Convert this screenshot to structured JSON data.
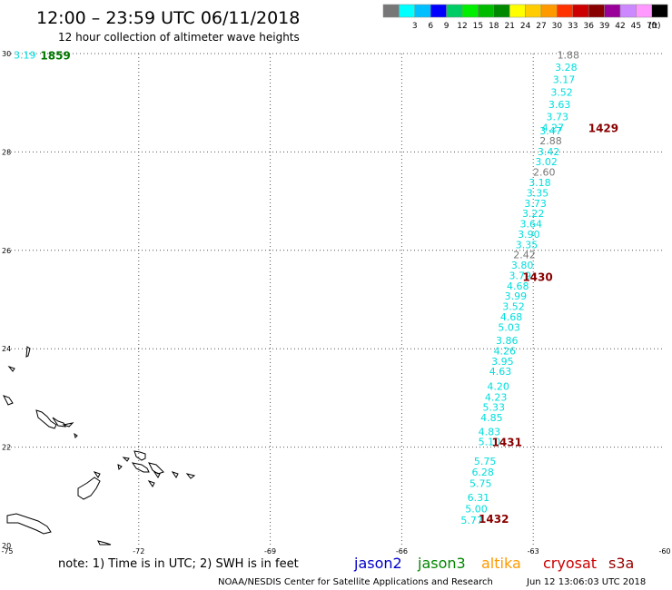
{
  "header": {
    "title": "12:00 – 23:59 UTC 06/11/2018",
    "subtitle": "12 hour collection of altimeter wave heights"
  },
  "legend": {
    "unit": "(ft)",
    "swatches": [
      {
        "label": "",
        "color": "#777777"
      },
      {
        "label": "3",
        "color": "#00ffff"
      },
      {
        "label": "6",
        "color": "#00bfff"
      },
      {
        "label": "9",
        "color": "#0000ff"
      },
      {
        "label": "12",
        "color": "#00cc66"
      },
      {
        "label": "15",
        "color": "#00ee00"
      },
      {
        "label": "18",
        "color": "#00bb00"
      },
      {
        "label": "21",
        "color": "#008800"
      },
      {
        "label": "24",
        "color": "#ffff00"
      },
      {
        "label": "27",
        "color": "#ffcc00"
      },
      {
        "label": "30",
        "color": "#ff9900"
      },
      {
        "label": "33",
        "color": "#ff3300"
      },
      {
        "label": "36",
        "color": "#cc0000"
      },
      {
        "label": "39",
        "color": "#880000"
      },
      {
        "label": "42",
        "color": "#990099"
      },
      {
        "label": "45",
        "color": "#cc88ff"
      },
      {
        "label": "70",
        "color": "#ff99ff"
      },
      {
        "label": "",
        "color": "#000000"
      }
    ]
  },
  "axes": {
    "lon_range": [
      -75,
      -60
    ],
    "lat_range": [
      20,
      30
    ],
    "lon_ticks": [
      {
        "value": -75,
        "label": "-75"
      },
      {
        "value": -72,
        "label": "-72"
      },
      {
        "value": -69,
        "label": "-69"
      },
      {
        "value": -66,
        "label": "-66"
      },
      {
        "value": -63,
        "label": "-63"
      },
      {
        "value": -60,
        "label": "-60"
      }
    ],
    "lat_ticks": [
      {
        "value": 20,
        "label": "20"
      },
      {
        "value": 22,
        "label": "22"
      },
      {
        "value": 24,
        "label": "24"
      },
      {
        "value": 26,
        "label": "26"
      },
      {
        "value": 28,
        "label": "28"
      },
      {
        "value": 30,
        "label": "30"
      }
    ],
    "grid": "dotted"
  },
  "observations": [
    {
      "lon": -74.6,
      "lat": 29.97,
      "swh": "3.19",
      "color": "#00dddd"
    },
    {
      "lon": -62.2,
      "lat": 29.97,
      "swh": "1.88",
      "color": "#777777"
    },
    {
      "lon": -62.25,
      "lat": 29.72,
      "swh": "3.28",
      "color": "#00dddd"
    },
    {
      "lon": -62.3,
      "lat": 29.47,
      "swh": "3.17",
      "color": "#00dddd"
    },
    {
      "lon": -62.35,
      "lat": 29.22,
      "swh": "3.52",
      "color": "#00dddd"
    },
    {
      "lon": -62.4,
      "lat": 28.97,
      "swh": "3.63",
      "color": "#00dddd"
    },
    {
      "lon": -62.45,
      "lat": 28.72,
      "swh": "3.73",
      "color": "#00dddd"
    },
    {
      "lon": -62.55,
      "lat": 28.5,
      "swh": "4.27",
      "color": "#00dddd"
    },
    {
      "lon": -62.6,
      "lat": 28.43,
      "swh": "3.47",
      "color": "#00dddd"
    },
    {
      "lon": -62.6,
      "lat": 28.23,
      "swh": "2.88",
      "color": "#777777"
    },
    {
      "lon": -62.65,
      "lat": 28.01,
      "swh": "3.42",
      "color": "#00dddd"
    },
    {
      "lon": -62.7,
      "lat": 27.8,
      "swh": "3.02",
      "color": "#00dddd"
    },
    {
      "lon": -62.75,
      "lat": 27.59,
      "swh": "2.60",
      "color": "#777777"
    },
    {
      "lon": -62.85,
      "lat": 27.38,
      "swh": "3.18",
      "color": "#00dddd"
    },
    {
      "lon": -62.9,
      "lat": 27.17,
      "swh": "3.35",
      "color": "#00dddd"
    },
    {
      "lon": -62.95,
      "lat": 26.96,
      "swh": "3.73",
      "color": "#00dddd"
    },
    {
      "lon": -63.0,
      "lat": 26.75,
      "swh": "3.22",
      "color": "#00dddd"
    },
    {
      "lon": -63.05,
      "lat": 26.54,
      "swh": "3.64",
      "color": "#00dddd"
    },
    {
      "lon": -63.1,
      "lat": 26.33,
      "swh": "3.90",
      "color": "#00dddd"
    },
    {
      "lon": -63.15,
      "lat": 26.12,
      "swh": "3.35",
      "color": "#00dddd"
    },
    {
      "lon": -63.2,
      "lat": 25.91,
      "swh": "2.42",
      "color": "#777777"
    },
    {
      "lon": -63.25,
      "lat": 25.7,
      "swh": "3.80",
      "color": "#00dddd"
    },
    {
      "lon": -63.3,
      "lat": 25.49,
      "swh": "3.79",
      "color": "#00dddd"
    },
    {
      "lon": -63.35,
      "lat": 25.28,
      "swh": "4.68",
      "color": "#00dddd"
    },
    {
      "lon": -63.4,
      "lat": 25.07,
      "swh": "3.99",
      "color": "#00dddd"
    },
    {
      "lon": -63.45,
      "lat": 24.86,
      "swh": "3.52",
      "color": "#00dddd"
    },
    {
      "lon": -63.5,
      "lat": 24.65,
      "swh": "4.68",
      "color": "#00dddd"
    },
    {
      "lon": -63.55,
      "lat": 24.44,
      "swh": "5.03",
      "color": "#00dddd"
    },
    {
      "lon": -63.6,
      "lat": 24.17,
      "swh": "3.86",
      "color": "#00dddd"
    },
    {
      "lon": -63.65,
      "lat": 23.96,
      "swh": "4.26",
      "color": "#00dddd"
    },
    {
      "lon": -63.7,
      "lat": 23.75,
      "swh": "3.95",
      "color": "#00dddd"
    },
    {
      "lon": -63.75,
      "lat": 23.54,
      "swh": "4.63",
      "color": "#00dddd"
    },
    {
      "lon": -63.8,
      "lat": 23.24,
      "swh": "4.20",
      "color": "#00dddd"
    },
    {
      "lon": -63.85,
      "lat": 23.02,
      "swh": "4.23",
      "color": "#00dddd"
    },
    {
      "lon": -63.9,
      "lat": 22.81,
      "swh": "5.33",
      "color": "#00dddd"
    },
    {
      "lon": -63.95,
      "lat": 22.6,
      "swh": "4.85",
      "color": "#00dddd"
    },
    {
      "lon": -64.0,
      "lat": 22.32,
      "swh": "4.83",
      "color": "#00dddd"
    },
    {
      "lon": -64.0,
      "lat": 22.11,
      "swh": "5.10",
      "color": "#00dddd"
    },
    {
      "lon": -64.1,
      "lat": 21.72,
      "swh": "5.75",
      "color": "#00dddd"
    },
    {
      "lon": -64.15,
      "lat": 21.49,
      "swh": "6.28",
      "color": "#00dddd"
    },
    {
      "lon": -64.2,
      "lat": 21.26,
      "swh": "5.75",
      "color": "#00dddd"
    },
    {
      "lon": -64.25,
      "lat": 20.98,
      "swh": "6.31",
      "color": "#00dddd"
    },
    {
      "lon": -64.3,
      "lat": 20.75,
      "swh": "5.00",
      "color": "#00dddd"
    },
    {
      "lon": -64.4,
      "lat": 20.52,
      "swh": "5.77",
      "color": "#00dddd"
    }
  ],
  "time_labels": [
    {
      "lon": -73.9,
      "lat": 29.97,
      "text": "1859",
      "color": "#007700"
    },
    {
      "lon": -61.4,
      "lat": 28.5,
      "text": "1429",
      "color": "#880000"
    },
    {
      "lon": -62.9,
      "lat": 25.47,
      "text": "1430",
      "color": "#880000"
    },
    {
      "lon": -63.6,
      "lat": 22.11,
      "text": "1431",
      "color": "#880000"
    },
    {
      "lon": -63.9,
      "lat": 20.55,
      "text": "1432",
      "color": "#880000"
    }
  ],
  "footer": {
    "note": "note: 1) Time is in UTC; 2) SWH is in feet",
    "satellites": [
      {
        "name": "jason2",
        "color": "#0000cc"
      },
      {
        "name": "jason3",
        "color": "#008800"
      },
      {
        "name": "altika",
        "color": "#ff9900"
      },
      {
        "name": "cryosat",
        "color": "#cc0000"
      },
      {
        "name": "s3a",
        "color": "#990000"
      }
    ],
    "credit": "NOAA/NESDIS Center for Satellite Applications and Research",
    "timestamp": "Jun 12 13:06:03 UTC 2018"
  }
}
